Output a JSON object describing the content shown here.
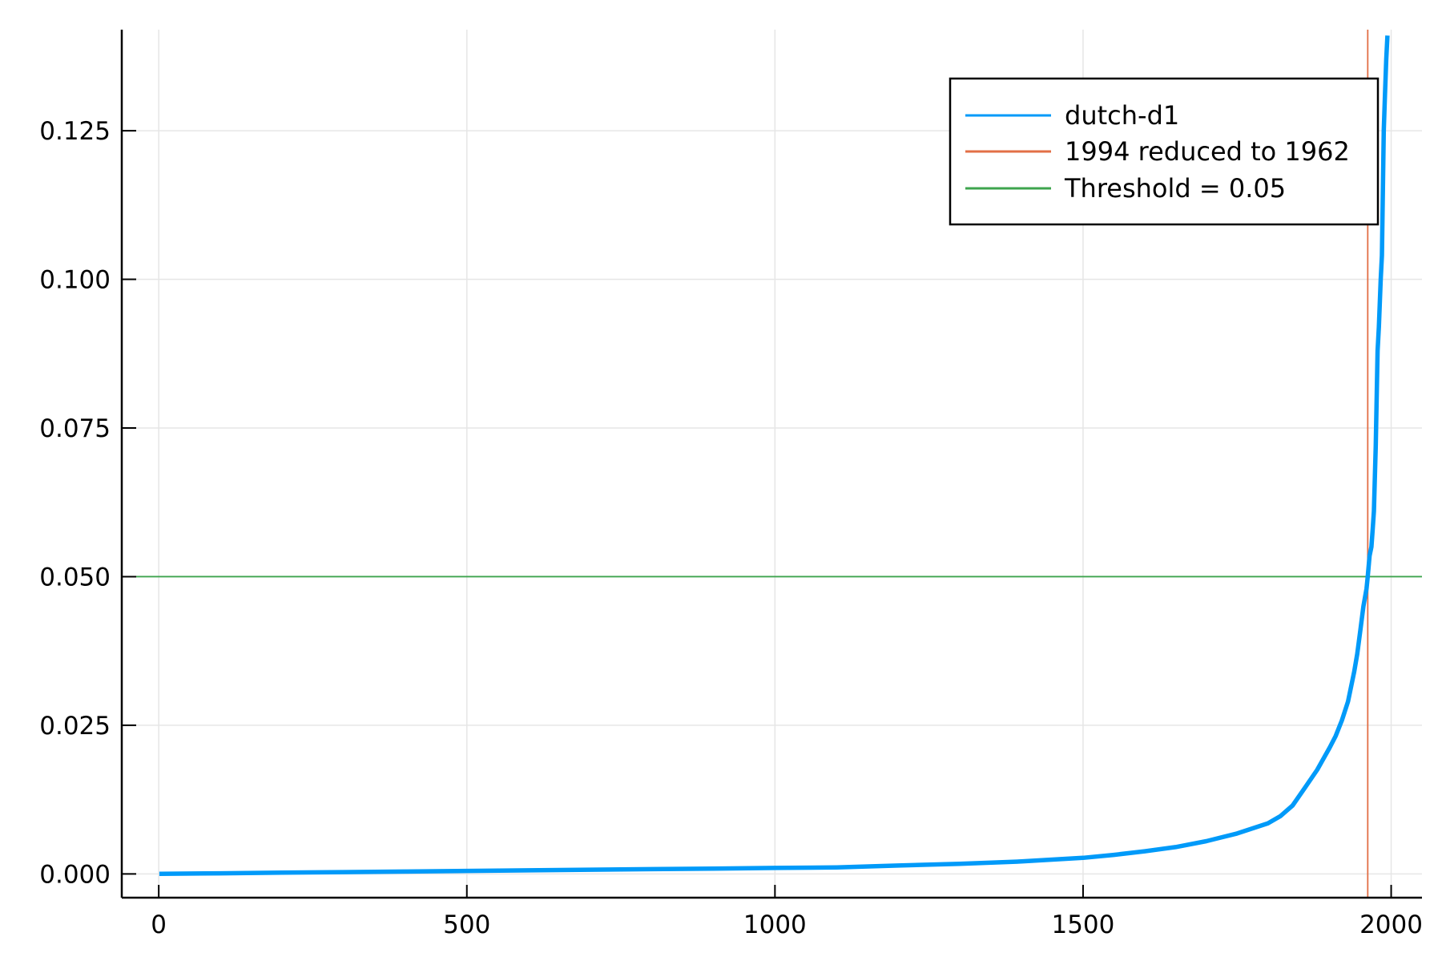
{
  "colors": {
    "series": "#009AF9",
    "vline": "#E26F46",
    "hline": "#3EA44E",
    "grid": "#E6E6E6",
    "axis": "#000000"
  },
  "chart_data": {
    "type": "line",
    "title": "",
    "xlabel": "",
    "ylabel": "",
    "xlim": [
      -60,
      2050
    ],
    "ylim": [
      -0.004,
      0.142
    ],
    "xticks": [
      0,
      500,
      1000,
      1500,
      2000
    ],
    "xtick_labels": [
      "0",
      "500",
      "1000",
      "1500",
      "2000"
    ],
    "yticks": [
      0.0,
      0.025,
      0.05,
      0.075,
      0.1,
      0.125
    ],
    "ytick_labels": [
      "0.000",
      "0.025",
      "0.050",
      "0.075",
      "0.100",
      "0.125"
    ],
    "grid": true,
    "legend_position": "top-right",
    "series": [
      {
        "name": "dutch-d1",
        "x": [
          1,
          100,
          200,
          300,
          400,
          500,
          600,
          700,
          800,
          900,
          1000,
          1100,
          1200,
          1300,
          1400,
          1500,
          1550,
          1600,
          1650,
          1700,
          1750,
          1800,
          1820,
          1840,
          1860,
          1880,
          1900,
          1910,
          1920,
          1930,
          1940,
          1945,
          1950,
          1955,
          1960,
          1962,
          1965,
          1968,
          1970,
          1972,
          1975,
          1978,
          1980,
          1983,
          1985,
          1988,
          1990,
          1992,
          1994
        ],
        "y": [
          0.0,
          0.0001,
          0.0002,
          0.0003,
          0.0004,
          0.0005,
          0.0006,
          0.0007,
          0.0008,
          0.0009,
          0.001,
          0.0011,
          0.0014,
          0.0017,
          0.0021,
          0.0027,
          0.0032,
          0.0038,
          0.0045,
          0.0055,
          0.0068,
          0.0085,
          0.0097,
          0.0115,
          0.0145,
          0.0175,
          0.0212,
          0.0232,
          0.0258,
          0.029,
          0.034,
          0.037,
          0.041,
          0.045,
          0.048,
          0.05,
          0.0535,
          0.055,
          0.058,
          0.061,
          0.072,
          0.088,
          0.092,
          0.1,
          0.104,
          0.125,
          0.131,
          0.137,
          0.141
        ]
      }
    ],
    "vline": {
      "name": "1994 reduced to 1962",
      "x": 1962
    },
    "hline": {
      "name": "Threshold = 0.05",
      "y": 0.05
    }
  }
}
